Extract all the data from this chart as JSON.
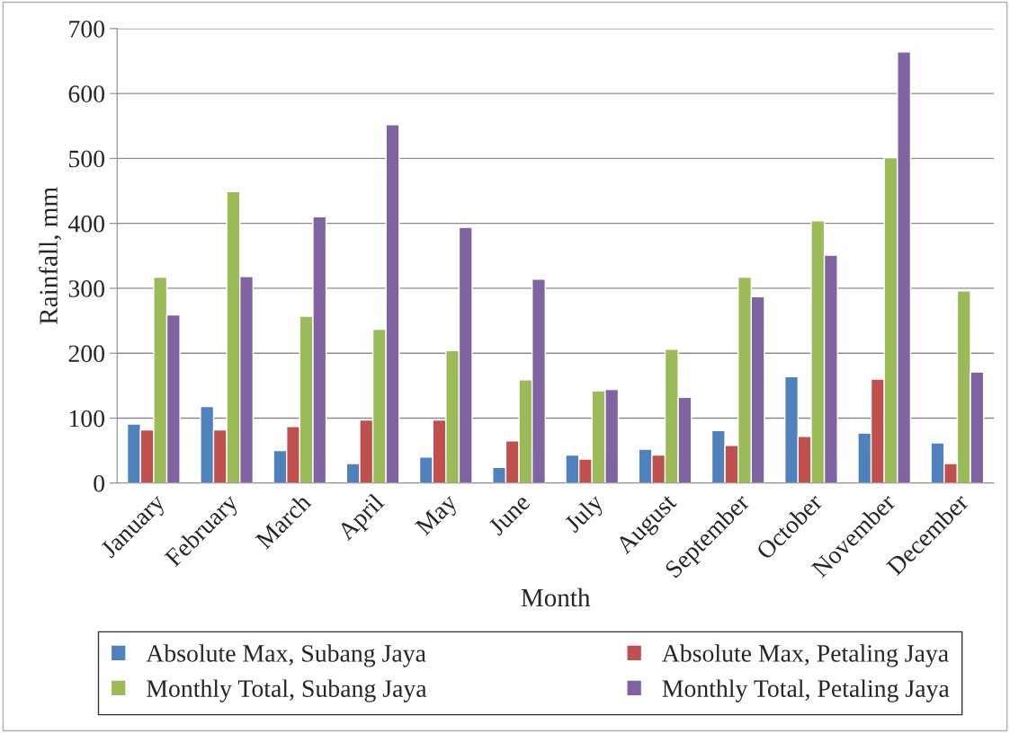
{
  "chart_data": {
    "type": "bar",
    "xlabel": "Month",
    "ylabel": "Rainfall, mm",
    "categories": [
      "January",
      "February",
      "March",
      "April",
      "May",
      "June",
      "July",
      "August",
      "September",
      "October",
      "November",
      "December"
    ],
    "series": [
      {
        "name": "Absolute Max, Subang Jaya",
        "color": "#4f81bd",
        "values": [
          91,
          118,
          50,
          30,
          40,
          24,
          43,
          52,
          81,
          164,
          77,
          62
        ]
      },
      {
        "name": "Absolute Max, Petaling Jaya",
        "color": "#c0504d",
        "values": [
          82,
          82,
          87,
          97,
          97,
          65,
          37,
          43,
          58,
          72,
          160,
          30
        ]
      },
      {
        "name": "Monthly Total, Subang Jaya",
        "color": "#9bbb59",
        "values": [
          317,
          449,
          257,
          237,
          204,
          159,
          142,
          206,
          317,
          404,
          501,
          296
        ]
      },
      {
        "name": "Monthly Total, Petaling Jaya",
        "color": "#8064a2",
        "values": [
          259,
          318,
          410,
          552,
          394,
          314,
          144,
          132,
          287,
          351,
          664,
          171
        ]
      }
    ],
    "ylim": [
      0,
      700
    ],
    "yticks": [
      0,
      100,
      200,
      300,
      400,
      500,
      600,
      700
    ],
    "grid": "y",
    "legend": "bottom"
  }
}
